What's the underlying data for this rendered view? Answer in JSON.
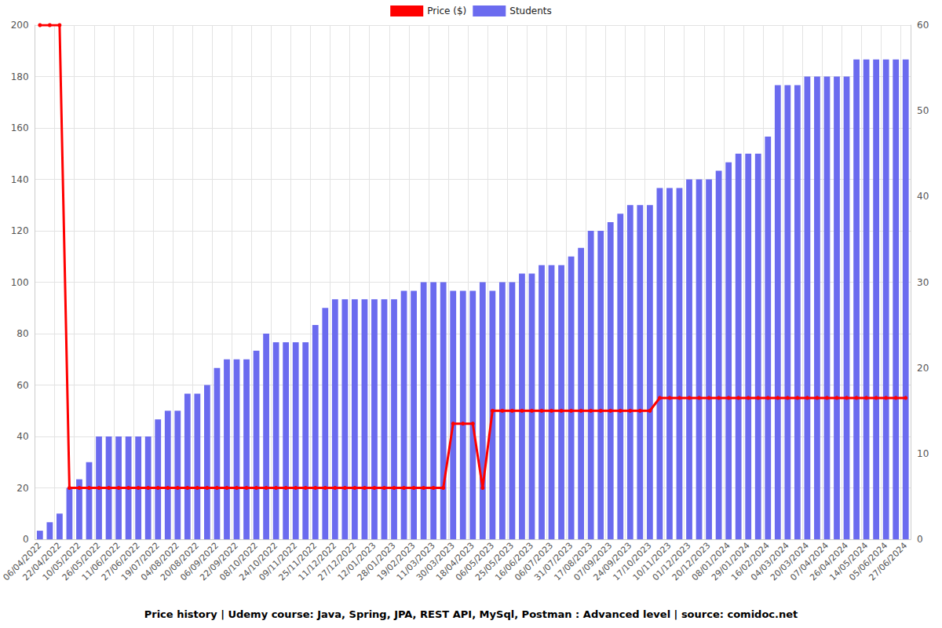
{
  "chart_data": {
    "type": "bar",
    "title": "Price history | Udemy course: Java, Spring, JPA, REST API, MySql, Postman : Advanced level | source: comidoc.net",
    "categories": [
      "06/04/2022",
      null,
      "22/04/2022",
      null,
      "10/05/2022",
      null,
      "26/05/2022",
      null,
      "11/06/2022",
      null,
      "27/06/2022",
      null,
      "19/07/2022",
      null,
      "04/08/2022",
      null,
      "20/08/2022",
      null,
      "06/09/2022",
      null,
      "22/09/2022",
      null,
      "08/10/2022",
      null,
      "24/10/2022",
      null,
      "09/11/2022",
      null,
      "25/11/2022",
      null,
      "11/12/2022",
      null,
      "27/12/2022",
      null,
      "12/01/2023",
      null,
      "28/01/2023",
      null,
      "19/02/2023",
      null,
      "11/03/2023",
      null,
      "30/03/2023",
      null,
      "18/04/2023",
      null,
      "06/05/2023",
      null,
      "25/05/2023",
      null,
      "16/06/2023",
      null,
      "06/07/2023",
      null,
      "31/07/2023",
      null,
      "17/08/2023",
      null,
      "07/09/2023",
      null,
      "24/09/2023",
      null,
      "17/10/2023",
      null,
      "10/11/2023",
      null,
      "01/12/2023",
      null,
      "20/12/2023",
      null,
      "08/01/2024",
      null,
      "29/01/2024",
      null,
      "16/02/2024",
      null,
      "04/03/2024",
      null,
      "20/03/2024",
      null,
      "07/04/2024",
      null,
      "26/04/2024",
      null,
      "14/05/2024",
      null,
      "05/06/2024",
      null,
      "27/06/2024"
    ],
    "series": [
      {
        "name": "Price ($)",
        "type": "line",
        "color": "#ff0000",
        "marker": "circle",
        "values": [
          200,
          200,
          200,
          20,
          20,
          20,
          20,
          20,
          20,
          20,
          20,
          20,
          20,
          20,
          20,
          20,
          20,
          20,
          20,
          20,
          20,
          20,
          20,
          20,
          20,
          20,
          20,
          20,
          20,
          20,
          20,
          20,
          20,
          20,
          20,
          20,
          20,
          20,
          20,
          20,
          20,
          20,
          45,
          45,
          45,
          20,
          50,
          50,
          50,
          50,
          50,
          50,
          50,
          50,
          50,
          50,
          50,
          50,
          50,
          50,
          50,
          50,
          50,
          55,
          55,
          55,
          55,
          55,
          55,
          55,
          55,
          55,
          55,
          55,
          55,
          55,
          55,
          55,
          55,
          55,
          55,
          55,
          55,
          55,
          55,
          55,
          55,
          55,
          55
        ]
      },
      {
        "name": "Students",
        "type": "bar",
        "axis": "y2",
        "color": "#6b6bef",
        "values": [
          1,
          2,
          3,
          6,
          7,
          9,
          12,
          12,
          12,
          12,
          12,
          12,
          14,
          15,
          15,
          17,
          17,
          18,
          20,
          21,
          21,
          21,
          22,
          24,
          23,
          23,
          23,
          23,
          25,
          27,
          28,
          28,
          28,
          28,
          28,
          28,
          28,
          29,
          29,
          30,
          30,
          30,
          29,
          29,
          29,
          30,
          29,
          30,
          30,
          31,
          31,
          32,
          32,
          32,
          33,
          34,
          36,
          36,
          37,
          38,
          39,
          39,
          39,
          41,
          41,
          41,
          42,
          42,
          42,
          43,
          44,
          45,
          45,
          45,
          47,
          53,
          53,
          53,
          54,
          54,
          54,
          54,
          54,
          56,
          56,
          56,
          56,
          56,
          56
        ]
      }
    ],
    "ylim": [
      0,
      200
    ],
    "yticks": [
      0,
      20,
      40,
      60,
      80,
      100,
      120,
      140,
      160,
      180,
      200
    ],
    "y2lim": [
      0,
      60
    ],
    "y2ticks": [
      0,
      10,
      20,
      30,
      40,
      50,
      60
    ],
    "grid": true,
    "legend": "top"
  }
}
